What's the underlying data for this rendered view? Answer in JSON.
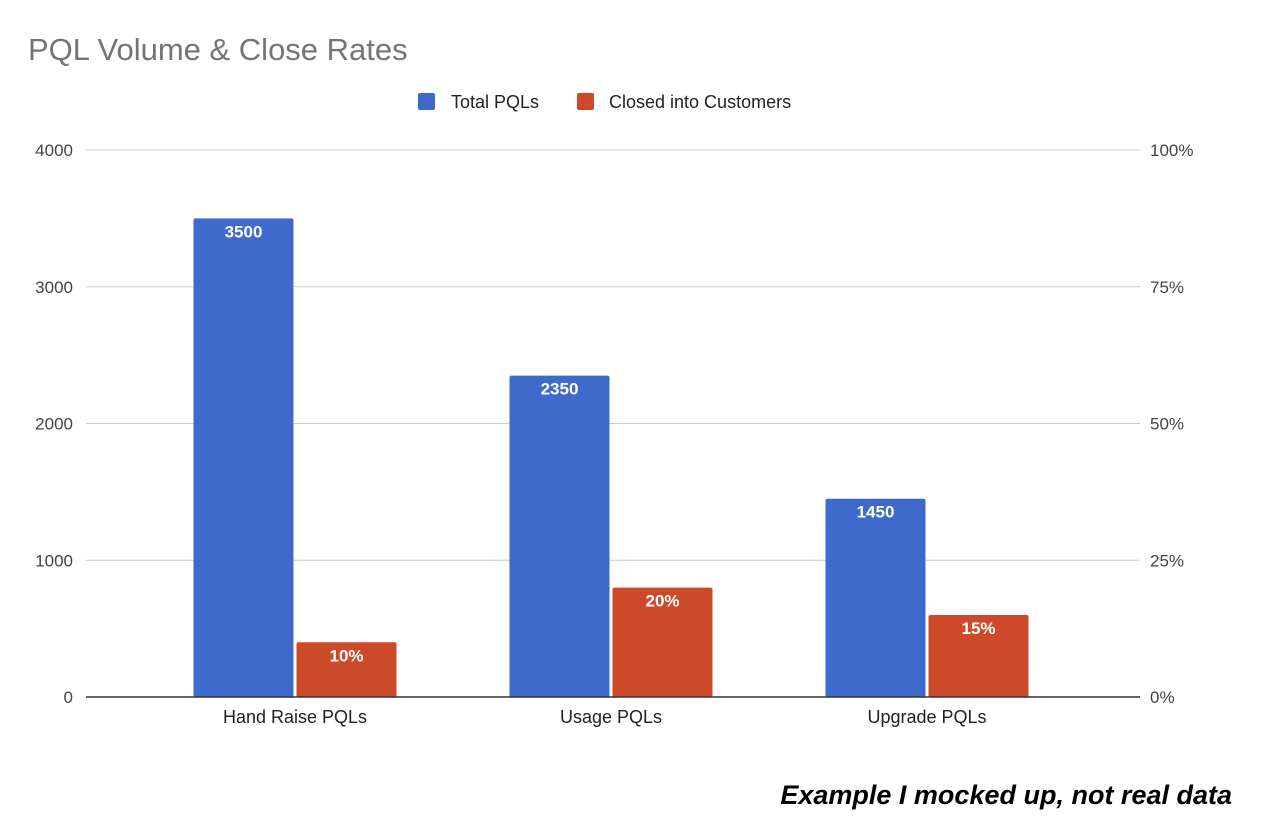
{
  "chart_data": {
    "type": "bar",
    "title": "PQL Volume & Close Rates",
    "categories": [
      "Hand Raise PQLs",
      "Usage PQLs",
      "Upgrade PQLs"
    ],
    "series": [
      {
        "name": "Total PQLs",
        "axis": "left",
        "color": "#3e6bcb",
        "values": [
          3500,
          2350,
          1450
        ],
        "labels": [
          "3500",
          "2350",
          "1450"
        ]
      },
      {
        "name": "Closed into Customers",
        "axis": "right",
        "color": "#cc4a29",
        "values": [
          10,
          20,
          15
        ],
        "labels": [
          "10%",
          "20%",
          "15%"
        ]
      }
    ],
    "ylim_left": [
      0,
      4000
    ],
    "yticks_left": [
      "0",
      "1000",
      "2000",
      "3000",
      "4000"
    ],
    "ylim_right": [
      0,
      100
    ],
    "yticks_right": [
      "0%",
      "25%",
      "50%",
      "75%",
      "100%"
    ],
    "legend_position": "top",
    "grid": true
  },
  "footnote": "Example I mocked up, not real data"
}
